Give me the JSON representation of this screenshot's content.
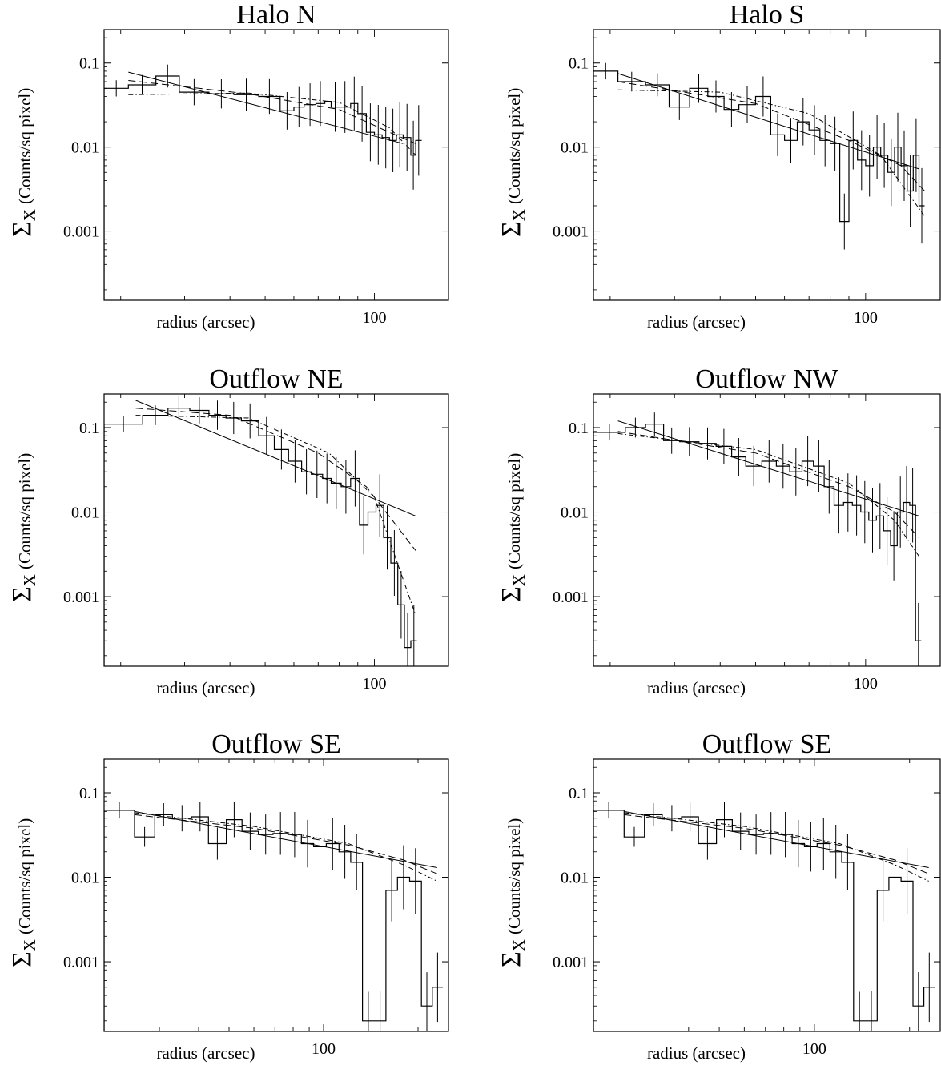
{
  "figure": {
    "ylabel_symbol": "Σ",
    "ylabel_subscript": "X",
    "ylabel_units": "(Counts/sq pixel)",
    "ytick_labels": [
      "0.1",
      "0.01",
      "0.001"
    ],
    "xtick_label": "100",
    "xlabel": "radius (arcsec)"
  },
  "chart_data": [
    {
      "type": "line",
      "title": "Halo N",
      "xlabel": "radius (arcsec)",
      "ylabel": "Σ_X (Counts/sq pixel)",
      "xscale": "log",
      "yscale": "log",
      "xlim": [
        18,
        160
      ],
      "ylim": [
        0.00015,
        0.25
      ],
      "yticks": [
        0.1,
        0.01,
        0.001
      ],
      "xticks": [
        100
      ],
      "data_histogram": {
        "edges": [
          18,
          21,
          25,
          29,
          35,
          41,
          48,
          55,
          60,
          64,
          69,
          73,
          76,
          80,
          86,
          90,
          95,
          100,
          105,
          110,
          115,
          120,
          126,
          130,
          135
        ],
        "values": [
          0.05,
          0.055,
          0.07,
          0.045,
          0.043,
          0.042,
          0.04,
          0.027,
          0.03,
          0.032,
          0.033,
          0.035,
          0.03,
          0.03,
          0.033,
          0.025,
          0.015,
          0.014,
          0.013,
          0.012,
          0.014,
          0.013,
          0.008,
          0.012
        ]
      },
      "models": [
        {
          "style": "solid",
          "x": [
            21,
            120
          ],
          "y": [
            0.078,
            0.011
          ]
        },
        {
          "style": "dashed",
          "x": [
            21,
            45,
            80,
            110,
            130
          ],
          "y": [
            0.062,
            0.043,
            0.028,
            0.015,
            0.011
          ]
        },
        {
          "style": "dash-dot",
          "x": [
            21,
            45,
            80,
            110,
            130
          ],
          "y": [
            0.042,
            0.044,
            0.034,
            0.017,
            0.008
          ]
        }
      ]
    },
    {
      "type": "line",
      "title": "Halo S",
      "xlabel": "radius (arcsec)",
      "ylabel": "Σ_X (Counts/sq pixel)",
      "xscale": "log",
      "yscale": "log",
      "xlim": [
        18,
        160
      ],
      "ylim": [
        0.00015,
        0.25
      ],
      "yticks": [
        0.1,
        0.01,
        0.001
      ],
      "xticks": [
        100
      ],
      "data_histogram": {
        "edges": [
          18,
          21,
          25,
          29,
          33,
          37,
          41,
          45,
          50,
          55,
          60,
          65,
          70,
          75,
          80,
          85,
          90,
          95,
          100,
          105,
          110,
          115,
          120,
          125,
          130,
          135,
          140,
          145
        ],
        "values": [
          0.08,
          0.06,
          0.055,
          0.03,
          0.05,
          0.04,
          0.028,
          0.032,
          0.04,
          0.014,
          0.012,
          0.02,
          0.016,
          0.012,
          0.011,
          0.0013,
          0.012,
          0.007,
          0.006,
          0.01,
          0.008,
          0.005,
          0.01,
          0.006,
          0.003,
          0.008,
          0.002
        ]
      },
      "models": [
        {
          "style": "solid",
          "x": [
            21,
            140
          ],
          "y": [
            0.075,
            0.0055
          ]
        },
        {
          "style": "dashed",
          "x": [
            21,
            50,
            90,
            125,
            145
          ],
          "y": [
            0.06,
            0.033,
            0.012,
            0.006,
            0.003
          ]
        },
        {
          "style": "dash-dot",
          "x": [
            21,
            40,
            70,
            110,
            145
          ],
          "y": [
            0.048,
            0.045,
            0.025,
            0.008,
            0.0015
          ]
        }
      ]
    },
    {
      "type": "line",
      "title": "Outflow NE",
      "xlabel": "radius (arcsec)",
      "ylabel": "Σ_X (Counts/sq pixel)",
      "xscale": "log",
      "yscale": "log",
      "xlim": [
        18,
        160
      ],
      "ylim": [
        0.00015,
        0.25
      ],
      "yticks": [
        0.1,
        0.01,
        0.001
      ],
      "xticks": [
        100
      ],
      "data_histogram": {
        "edges": [
          18,
          23,
          27,
          31,
          35,
          39,
          43,
          48,
          53,
          58,
          63,
          67,
          72,
          76,
          81,
          86,
          91,
          96,
          101,
          106,
          111,
          116,
          121,
          126,
          131
        ],
        "values": [
          0.11,
          0.14,
          0.17,
          0.16,
          0.14,
          0.13,
          0.12,
          0.08,
          0.055,
          0.04,
          0.03,
          0.028,
          0.025,
          0.022,
          0.02,
          0.025,
          0.007,
          0.01,
          0.012,
          0.005,
          0.0025,
          0.0008,
          0.00025,
          0.0003
        ]
      },
      "models": [
        {
          "style": "solid",
          "x": [
            22,
            130
          ],
          "y": [
            0.21,
            0.009
          ]
        },
        {
          "style": "dashed",
          "x": [
            22,
            40,
            70,
            95,
            130
          ],
          "y": [
            0.17,
            0.14,
            0.05,
            0.02,
            0.0035
          ]
        },
        {
          "style": "dash-dot",
          "x": [
            22,
            45,
            75,
            100,
            130
          ],
          "y": [
            0.14,
            0.13,
            0.05,
            0.015,
            0.0006
          ]
        }
      ]
    },
    {
      "type": "line",
      "title": "Outflow NW",
      "xlabel": "radius (arcsec)",
      "ylabel": "Σ_X (Counts/sq pixel)",
      "xscale": "log",
      "yscale": "log",
      "xlim": [
        18,
        160
      ],
      "ylim": [
        0.00015,
        0.25
      ],
      "yticks": [
        0.1,
        0.01,
        0.001
      ],
      "xticks": [
        100
      ],
      "data_histogram": {
        "edges": [
          18,
          22,
          25,
          28,
          31,
          35,
          39,
          43,
          47,
          52,
          57,
          62,
          67,
          72,
          77,
          82,
          87,
          92,
          97,
          102,
          107,
          112,
          117,
          122,
          127,
          132,
          137,
          142
        ],
        "values": [
          0.088,
          0.1,
          0.11,
          0.07,
          0.068,
          0.065,
          0.06,
          0.045,
          0.035,
          0.04,
          0.035,
          0.03,
          0.04,
          0.035,
          0.02,
          0.012,
          0.013,
          0.012,
          0.01,
          0.008,
          0.009,
          0.006,
          0.004,
          0.01,
          0.013,
          0.012,
          0.0003
        ]
      },
      "models": [
        {
          "style": "solid",
          "x": [
            21,
            140
          ],
          "y": [
            0.12,
            0.009
          ]
        },
        {
          "style": "dashed",
          "x": [
            21,
            50,
            90,
            120,
            140
          ],
          "y": [
            0.09,
            0.05,
            0.02,
            0.01,
            0.005
          ]
        },
        {
          "style": "dash-dot",
          "x": [
            21,
            50,
            90,
            120,
            140
          ],
          "y": [
            0.085,
            0.055,
            0.022,
            0.008,
            0.003
          ]
        }
      ]
    },
    {
      "type": "line",
      "title": "Outflow SE",
      "xlabel": "radius (arcsec)",
      "ylabel": "Σ_X (Counts/sq pixel)",
      "xscale": "log",
      "yscale": "log",
      "xlim": [
        20,
        250
      ],
      "ylim": [
        0.00015,
        0.25
      ],
      "yticks": [
        0.1,
        0.01,
        0.001
      ],
      "xticks": [
        100
      ],
      "data_histogram": {
        "edges": [
          20,
          25,
          29,
          33,
          38,
          43,
          49,
          55,
          62,
          69,
          77,
          85,
          93,
          102,
          112,
          122,
          133,
          145,
          158,
          172,
          188,
          205,
          222,
          240
        ],
        "values": [
          0.062,
          0.03,
          0.055,
          0.05,
          0.052,
          0.025,
          0.048,
          0.035,
          0.032,
          0.033,
          0.032,
          0.025,
          0.023,
          0.025,
          0.02,
          0.015,
          0.0002,
          0.0002,
          0.007,
          0.01,
          0.009,
          0.0003,
          0.0005
        ]
      },
      "models": [
        {
          "style": "solid",
          "x": [
            25,
            230
          ],
          "y": [
            0.06,
            0.013
          ]
        },
        {
          "style": "dashed",
          "x": [
            25,
            60,
            120,
            180,
            230
          ],
          "y": [
            0.055,
            0.038,
            0.024,
            0.016,
            0.011
          ]
        },
        {
          "style": "dash-dot",
          "x": [
            25,
            60,
            120,
            180,
            230
          ],
          "y": [
            0.058,
            0.04,
            0.025,
            0.014,
            0.009
          ]
        }
      ]
    },
    {
      "type": "line",
      "title": "Outflow SE",
      "xlabel": "radius (arcsec)",
      "ylabel": "Σ_X (Counts/sq pixel)",
      "xscale": "log",
      "yscale": "log",
      "xlim": [
        20,
        250
      ],
      "ylim": [
        0.00015,
        0.25
      ],
      "yticks": [
        0.1,
        0.01,
        0.001
      ],
      "xticks": [
        100
      ],
      "data_histogram": {
        "edges": [
          20,
          25,
          29,
          33,
          38,
          43,
          49,
          55,
          62,
          69,
          77,
          85,
          93,
          102,
          112,
          122,
          133,
          145,
          158,
          172,
          188,
          205,
          222,
          240
        ],
        "values": [
          0.062,
          0.03,
          0.055,
          0.05,
          0.052,
          0.025,
          0.048,
          0.035,
          0.032,
          0.033,
          0.032,
          0.025,
          0.023,
          0.025,
          0.02,
          0.015,
          0.0002,
          0.0002,
          0.007,
          0.01,
          0.009,
          0.0003,
          0.0005
        ]
      },
      "models": [
        {
          "style": "solid",
          "x": [
            25,
            230
          ],
          "y": [
            0.06,
            0.013
          ]
        },
        {
          "style": "dashed",
          "x": [
            25,
            60,
            120,
            180,
            230
          ],
          "y": [
            0.055,
            0.038,
            0.024,
            0.016,
            0.011
          ]
        },
        {
          "style": "dash-dot",
          "x": [
            25,
            60,
            120,
            180,
            230
          ],
          "y": [
            0.058,
            0.04,
            0.025,
            0.014,
            0.009
          ]
        }
      ]
    }
  ]
}
